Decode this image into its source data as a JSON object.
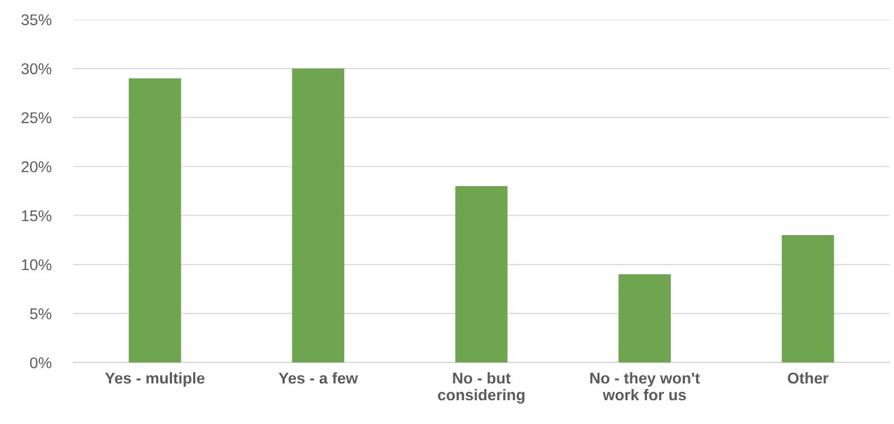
{
  "chart_data": {
    "type": "bar",
    "categories": [
      "Yes - multiple",
      "Yes - a few",
      "No - but\nconsidering",
      "No - they won't\nwork for us",
      "Other"
    ],
    "values": [
      29,
      30,
      18,
      9,
      13
    ],
    "color": "#6fa54e",
    "ylim": [
      0,
      35
    ],
    "yticks": [
      {
        "value": 0,
        "label": "0%"
      },
      {
        "value": 5,
        "label": "5%"
      },
      {
        "value": 10,
        "label": "10%"
      },
      {
        "value": 15,
        "label": "15%"
      },
      {
        "value": 20,
        "label": "20%"
      },
      {
        "value": 25,
        "label": "25%"
      },
      {
        "value": 30,
        "label": "30%"
      },
      {
        "value": 35,
        "label": "35%"
      }
    ],
    "grid": "y",
    "legend": false
  }
}
